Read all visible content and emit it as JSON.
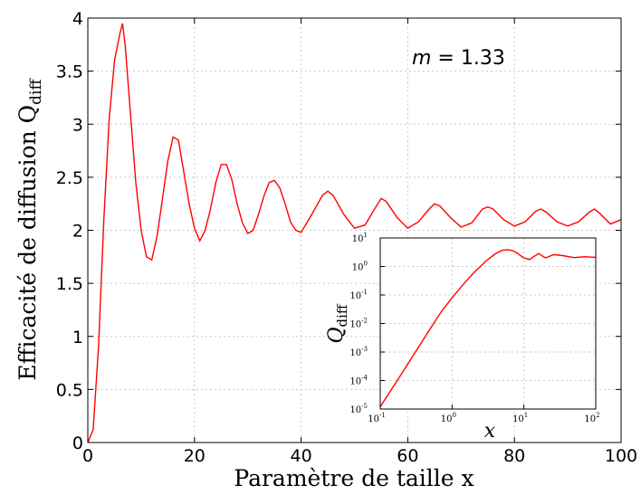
{
  "chart_data": [
    {
      "type": "line",
      "annotation": "m = 1.33",
      "annotation_parts": {
        "var": "m",
        "rest": " = 1.33"
      },
      "ylabel": "Efficacité de diffusion Q",
      "ylabel_subscript": "diff",
      "xlabel": "Paramètre de taille x",
      "xlim": [
        0,
        100
      ],
      "ylim": [
        0,
        4
      ],
      "x_ticks": [
        "0",
        "20",
        "40",
        "60",
        "80",
        "100"
      ],
      "y_ticks": [
        "0",
        "0.5",
        "1",
        "1.5",
        "2",
        "2.5",
        "3",
        "3.5",
        "4"
      ],
      "grid": true,
      "series": [
        {
          "color": "#ff0000",
          "x": [
            0,
            1,
            2,
            3,
            4,
            5,
            6,
            6.5,
            7,
            8,
            9,
            10,
            11,
            12,
            13,
            14,
            15,
            16,
            17,
            18,
            19,
            20,
            21,
            22,
            23,
            24,
            25,
            26,
            27,
            28,
            29,
            30,
            31,
            32,
            33,
            34,
            35,
            36,
            37,
            38,
            39,
            40,
            42,
            44,
            45,
            46,
            48,
            50,
            52,
            54,
            55,
            56,
            58,
            60,
            62,
            64,
            65,
            66,
            68,
            70,
            72,
            74,
            75,
            76,
            78,
            80,
            82,
            84,
            85,
            86,
            88,
            90,
            92,
            94,
            95,
            96,
            98,
            100
          ],
          "y": [
            0,
            0.12,
            0.9,
            2.1,
            3.05,
            3.6,
            3.85,
            3.95,
            3.75,
            3.1,
            2.45,
            2.0,
            1.75,
            1.72,
            1.95,
            2.3,
            2.65,
            2.88,
            2.85,
            2.55,
            2.25,
            2.02,
            1.9,
            2.0,
            2.2,
            2.45,
            2.62,
            2.62,
            2.48,
            2.25,
            2.07,
            1.97,
            2.0,
            2.15,
            2.32,
            2.45,
            2.47,
            2.4,
            2.25,
            2.08,
            2.0,
            1.98,
            2.15,
            2.33,
            2.37,
            2.33,
            2.15,
            2.02,
            2.05,
            2.22,
            2.3,
            2.27,
            2.12,
            2.02,
            2.08,
            2.2,
            2.25,
            2.23,
            2.12,
            2.03,
            2.07,
            2.2,
            2.22,
            2.2,
            2.1,
            2.04,
            2.08,
            2.18,
            2.2,
            2.17,
            2.08,
            2.04,
            2.08,
            2.17,
            2.2,
            2.16,
            2.06,
            2.1
          ]
        }
      ]
    },
    {
      "type": "line",
      "role": "inset",
      "scale": "log-log",
      "ylabel": "Q",
      "ylabel_subscript": "diff",
      "xlabel": "x",
      "xlim": [
        0.1,
        100
      ],
      "ylim": [
        1e-05,
        10
      ],
      "x_ticks": [
        {
          "base": "10",
          "exp": "-1"
        },
        {
          "base": "10",
          "exp": "0"
        },
        {
          "base": "10",
          "exp": "1"
        },
        {
          "base": "10",
          "exp": "2"
        }
      ],
      "y_ticks": [
        {
          "base": "10",
          "exp": "-5"
        },
        {
          "base": "10",
          "exp": "-4"
        },
        {
          "base": "10",
          "exp": "-3"
        },
        {
          "base": "10",
          "exp": "-2"
        },
        {
          "base": "10",
          "exp": "-1"
        },
        {
          "base": "10",
          "exp": "0"
        },
        {
          "base": "10",
          "exp": "1"
        }
      ],
      "grid": true,
      "series": [
        {
          "color": "#ff0000",
          "x": [
            0.1,
            0.2,
            0.4,
            0.7,
            1,
            1.5,
            2,
            3,
            4,
            5,
            6,
            7,
            8,
            9,
            10,
            12,
            14,
            16,
            20,
            26,
            35,
            50,
            70,
            100
          ],
          "y": [
            1.2e-05,
            0.00018,
            0.0028,
            0.025,
            0.08,
            0.27,
            0.6,
            1.6,
            2.8,
            3.7,
            3.9,
            3.6,
            3.0,
            2.4,
            2.0,
            1.75,
            2.3,
            2.85,
            2.0,
            2.6,
            2.4,
            2.05,
            2.2,
            2.1
          ]
        }
      ]
    }
  ]
}
